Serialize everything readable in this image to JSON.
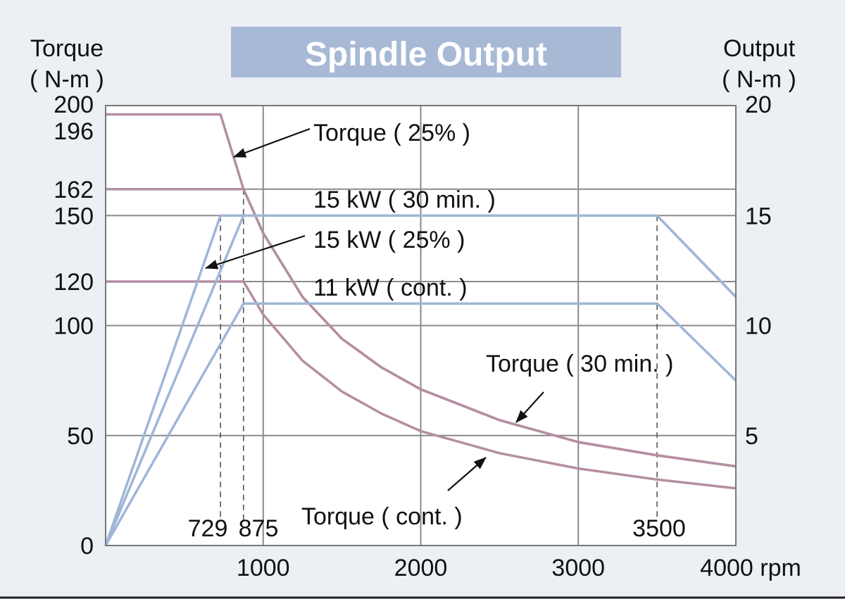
{
  "chart_data": {
    "type": "line",
    "title": "Spindle Output",
    "left_axis": {
      "label_line1": "Torque",
      "label_line2": "( N-m )",
      "ylim": [
        0,
        200
      ],
      "ticks": [
        0,
        50,
        100,
        120,
        150,
        162,
        196,
        200
      ]
    },
    "right_axis": {
      "label_line1": "Output",
      "label_line2": "( N-m )",
      "ylim": [
        0,
        20
      ],
      "ticks": [
        5,
        10,
        15,
        20
      ]
    },
    "x_axis": {
      "xlim": [
        0,
        4000
      ],
      "ticks": [
        1000,
        2000,
        3000
      ],
      "end_label": "4000 rpm",
      "unit": "rpm"
    },
    "marked_speeds": [
      {
        "value": 729,
        "label": "729",
        "guide_top": 150
      },
      {
        "value": 875,
        "label": "875",
        "guide_top": 162
      },
      {
        "value": 3500,
        "label": "3500",
        "guide_top": 150
      }
    ],
    "grid": true,
    "series": [
      {
        "name": "Torque ( 25% )",
        "axis": "left",
        "color": "#b48ea2",
        "x": [
          0,
          729,
          875,
          1000,
          1250,
          1500,
          1750,
          2000,
          2500,
          3000,
          3500,
          4000
        ],
        "y": [
          196,
          196,
          162,
          142,
          113,
          94,
          81,
          71,
          57,
          47,
          41,
          36
        ]
      },
      {
        "name": "Torque ( 30 min. )",
        "axis": "left",
        "color": "#b48ea2",
        "x": [
          0,
          729,
          875,
          1000,
          1250,
          1500,
          1750,
          2000,
          2500,
          3000,
          3500,
          4000
        ],
        "y": [
          162,
          162,
          162,
          142,
          113,
          94,
          81,
          71,
          57,
          47,
          41,
          36
        ]
      },
      {
        "name": "Torque ( cont. )",
        "axis": "left",
        "color": "#b48ea2",
        "x": [
          0,
          729,
          875,
          1000,
          1250,
          1500,
          1750,
          2000,
          2500,
          3000,
          3500,
          4000
        ],
        "y": [
          120,
          120,
          120,
          105,
          84,
          70,
          60,
          52,
          42,
          35,
          30,
          26
        ]
      },
      {
        "name": "15 kW ( 25% )",
        "axis": "right",
        "color": "#9fb6d8",
        "x": [
          0,
          729,
          875,
          3500,
          4000
        ],
        "y": [
          0,
          15,
          15,
          15,
          11.3
        ]
      },
      {
        "name": "15 kW ( 30 min. )",
        "axis": "right",
        "color": "#9fb6d8",
        "x": [
          0,
          875,
          3500,
          4000
        ],
        "y": [
          0,
          15,
          15,
          11.3
        ]
      },
      {
        "name": "11 kW ( cont. )",
        "axis": "right",
        "color": "#9fb6d8",
        "x": [
          0,
          875,
          3500,
          4000
        ],
        "y": [
          0,
          11,
          11,
          7.5
        ]
      }
    ],
    "annotations": [
      {
        "text": "Torque ( 25% )",
        "points_to_x": 810,
        "points_to_y": 185
      },
      {
        "text": "15 kW ( 30 min. )"
      },
      {
        "text": "15 kW ( 25% )",
        "points_to_x": 620,
        "points_to_y": 126
      },
      {
        "text": "11 kW ( cont. )"
      },
      {
        "text": "Torque ( 30 min. )",
        "points_to_x": 2620,
        "points_to_y": 56
      },
      {
        "text": "Torque ( cont. )",
        "points_to_x": 2400,
        "points_to_y": 42
      }
    ],
    "colors": {
      "background": "#ecf0f5",
      "plot_background": "#ffffff",
      "grid": "#8a8a8a",
      "title_box": "#a8b9d6",
      "torque": "#b48ea2",
      "output": "#9fb6d8"
    }
  }
}
